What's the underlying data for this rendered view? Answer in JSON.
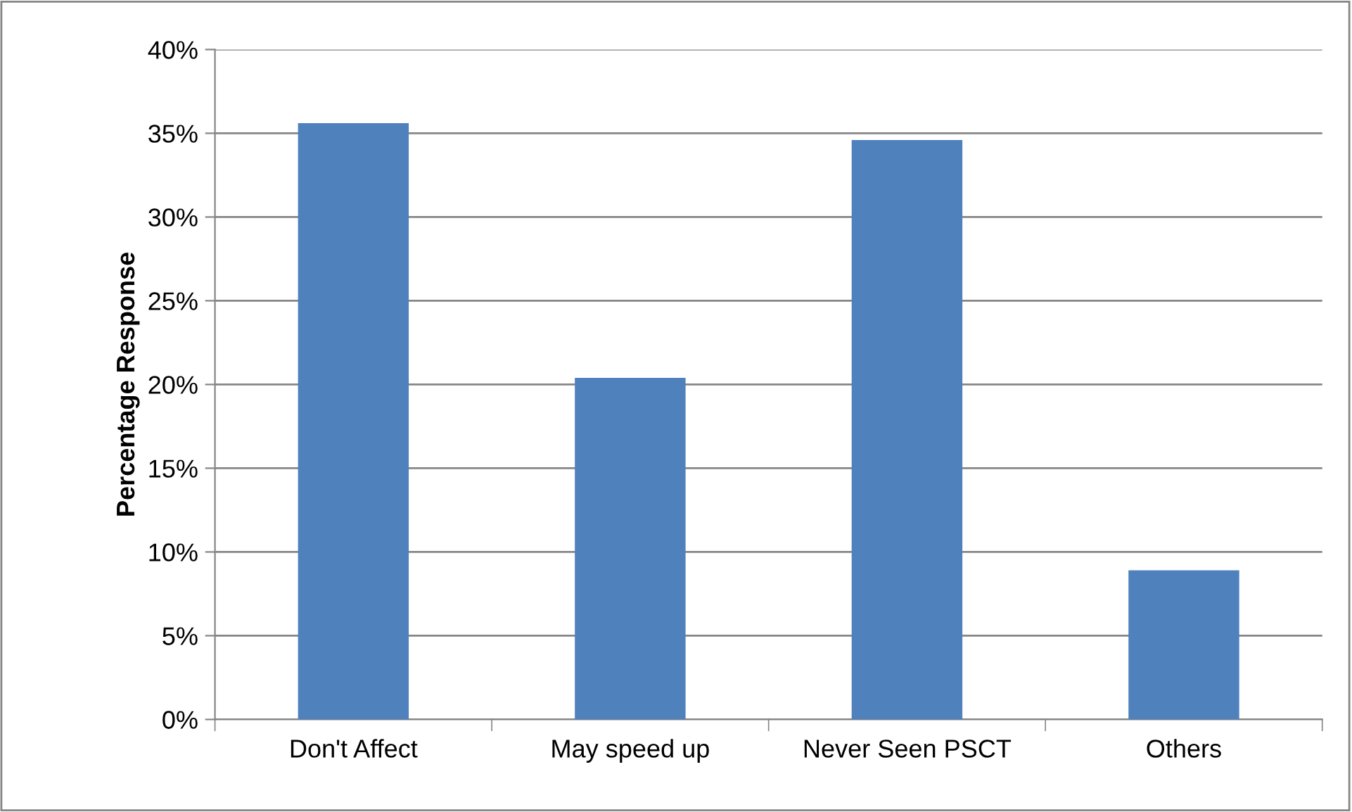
{
  "chart_data": {
    "type": "bar",
    "ylabel": "Percentage Response",
    "categories": [
      "Don't Affect",
      "May speed up",
      "Never Seen PSCT",
      "Others"
    ],
    "values": [
      35.6,
      20.4,
      34.6,
      8.9
    ],
    "color": "#4f81bd",
    "ylim": [
      0,
      40
    ],
    "yticks": [
      {
        "value": 0,
        "label": "0%"
      },
      {
        "value": 5,
        "label": "5%"
      },
      {
        "value": 10,
        "label": "10%"
      },
      {
        "value": 15,
        "label": "15%"
      },
      {
        "value": 20,
        "label": "20%"
      },
      {
        "value": 25,
        "label": "25%"
      },
      {
        "value": 30,
        "label": "30%"
      },
      {
        "value": 35,
        "label": "35%"
      },
      {
        "value": 40,
        "label": "40%"
      }
    ],
    "grid": "y",
    "legend": false
  }
}
